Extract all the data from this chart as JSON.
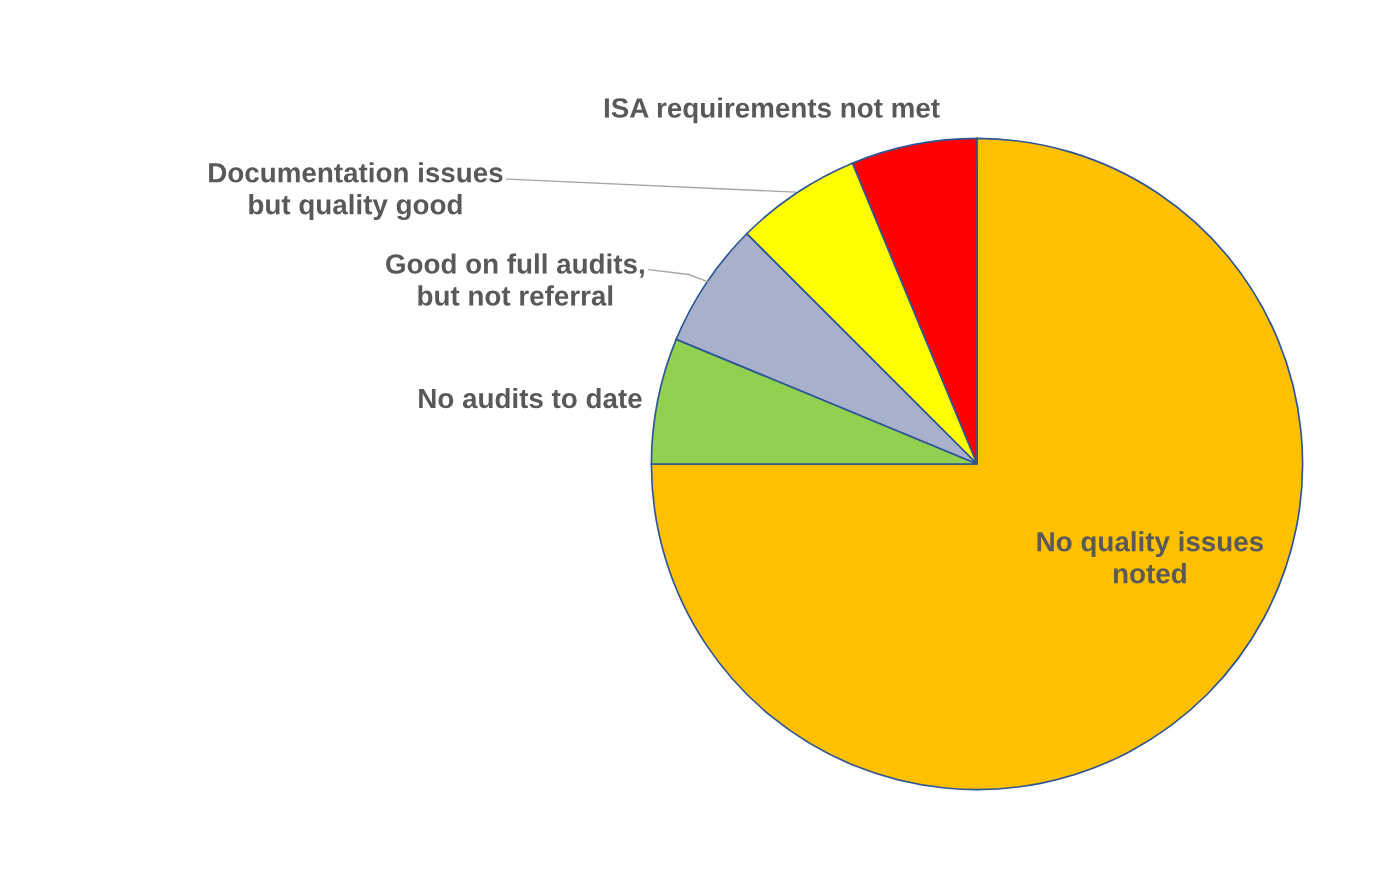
{
  "chart_data": {
    "type": "pie",
    "categories": [
      "No quality issues noted",
      "ISA requirements not met",
      "Documentation issues but quality good",
      "Good on full audits, but not referral",
      "No audits to date"
    ],
    "values": [
      75,
      6.25,
      6.25,
      6.25,
      6.25
    ],
    "colors": [
      "#ffc000",
      "#ff0000",
      "#ffff00",
      "#a7b1cc",
      "#92d050"
    ]
  }
}
